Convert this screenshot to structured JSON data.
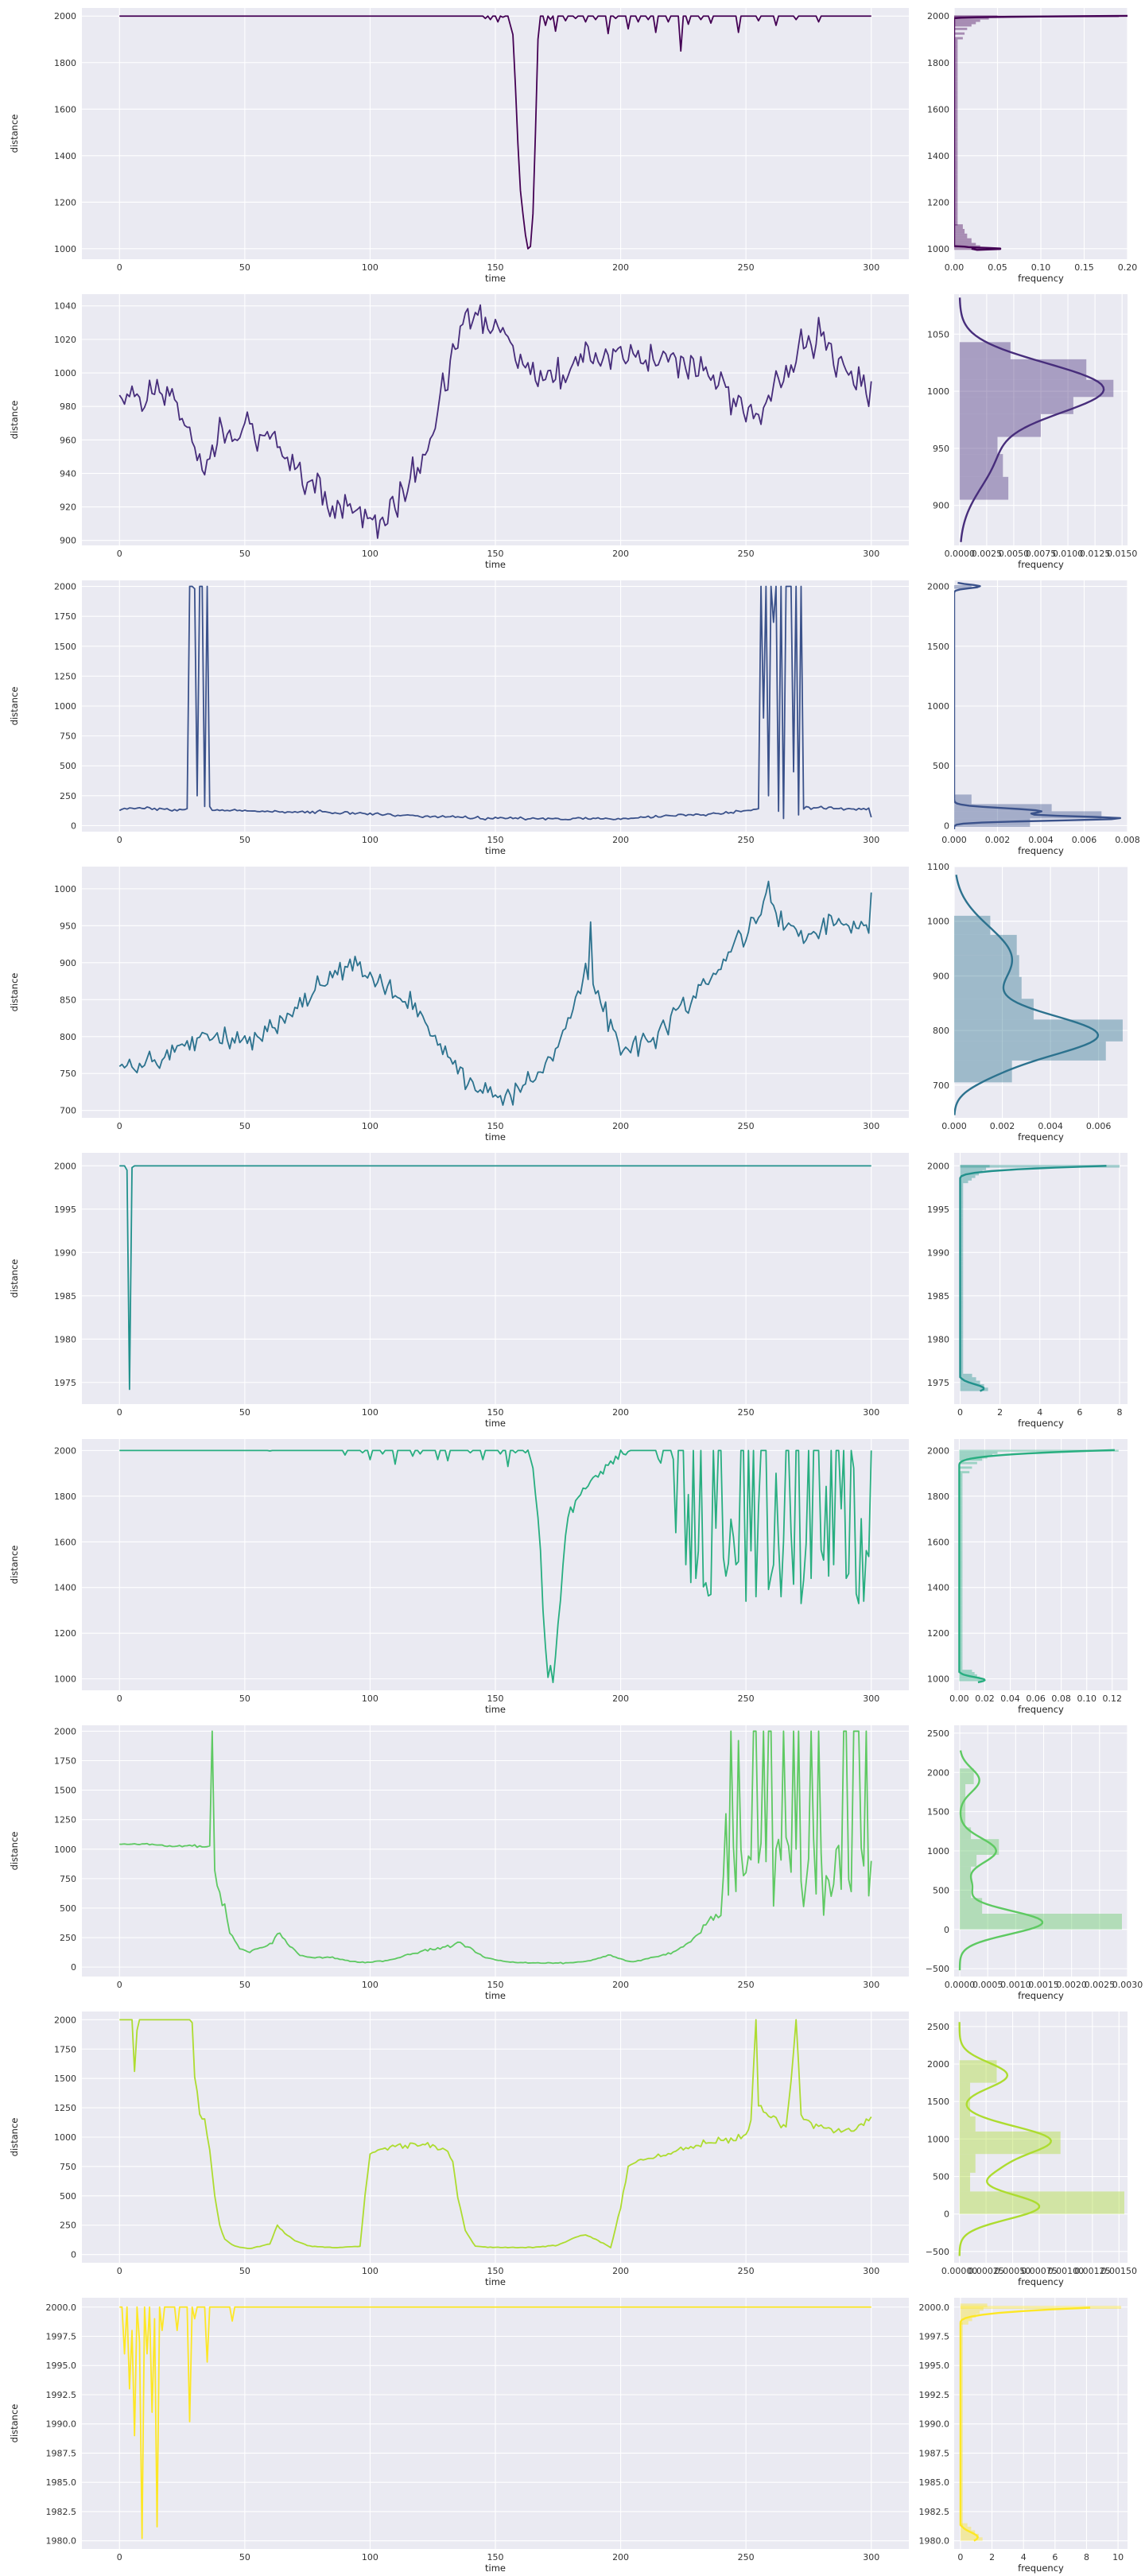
{
  "figure": {
    "rows": 9
  },
  "chart_data": [
    {
      "type": "line",
      "series": [
        {
          "color": "#440154"
        }
      ],
      "xlabel": "time",
      "ylabel": "distance",
      "xlim": [
        -15,
        315
      ],
      "ylim": [
        955,
        2035
      ],
      "xticks": [
        0,
        50,
        100,
        150,
        200,
        250,
        300
      ],
      "yticks": [
        1000,
        1200,
        1400,
        1600,
        1800,
        2000
      ],
      "ytick_labels": [
        "1000",
        "1200",
        "1400",
        "1600",
        "1800",
        "2000"
      ],
      "hist": {
        "xlabel": "frequency",
        "xlim": [
          0,
          0.2
        ],
        "xticks": [
          0,
          0.05,
          0.1,
          0.15,
          0.2
        ],
        "xtick_labels": [
          "0.00",
          "0.05",
          "0.10",
          "0.15",
          "0.20"
        ],
        "ylim": [
          955,
          2035
        ],
        "yticks": [
          1000,
          1200,
          1400,
          1600,
          1800,
          2000
        ],
        "ytick_labels": [
          "1000",
          "1200",
          "1400",
          "1600",
          "1800",
          "2000"
        ]
      }
    },
    {
      "type": "line",
      "series": [
        {
          "color": "#472d7b"
        }
      ],
      "xlabel": "time",
      "ylabel": "distance",
      "xlim": [
        -15,
        315
      ],
      "ylim": [
        897,
        1047
      ],
      "xticks": [
        0,
        50,
        100,
        150,
        200,
        250,
        300
      ],
      "yticks": [
        900,
        920,
        940,
        960,
        980,
        1000,
        1020,
        1040
      ],
      "ytick_labels": [
        "900",
        "920",
        "940",
        "960",
        "980",
        "1000",
        "1020",
        "1040"
      ],
      "hist": {
        "xlabel": "frequency",
        "xlim": [
          -0.0005,
          0.0155
        ],
        "xticks": [
          0,
          0.0025,
          0.005,
          0.0075,
          0.01,
          0.0125,
          0.015
        ],
        "xtick_labels": [
          "0.0000",
          "0.0025",
          "0.0050",
          "0.0075",
          "0.0100",
          "0.0125",
          "0.0150"
        ],
        "ylim": [
          865,
          1085
        ],
        "yticks": [
          900,
          950,
          1000,
          1050
        ],
        "ytick_labels": [
          "900",
          "950",
          "1000",
          "1050"
        ]
      }
    },
    {
      "type": "line",
      "series": [
        {
          "color": "#3b528b"
        }
      ],
      "xlabel": "time",
      "ylabel": "distance",
      "xlim": [
        -15,
        315
      ],
      "ylim": [
        -50,
        2050
      ],
      "xticks": [
        0,
        50,
        100,
        150,
        200,
        250,
        300
      ],
      "yticks": [
        0,
        250,
        500,
        750,
        1000,
        1250,
        1500,
        1750,
        2000
      ],
      "ytick_labels": [
        "0",
        "250",
        "500",
        "750",
        "1000",
        "1250",
        "1500",
        "1750",
        "2000"
      ],
      "hist": {
        "xlabel": "frequency",
        "xlim": [
          0,
          0.008
        ],
        "xticks": [
          0,
          0.002,
          0.004,
          0.006,
          0.008
        ],
        "xtick_labels": [
          "0.000",
          "0.002",
          "0.004",
          "0.006",
          "0.008"
        ],
        "ylim": [
          -50,
          2050
        ],
        "yticks": [
          0,
          500,
          1000,
          1500,
          2000
        ],
        "ytick_labels": [
          "0",
          "500",
          "1000",
          "1500",
          "2000"
        ]
      }
    },
    {
      "type": "line",
      "series": [
        {
          "color": "#2c728e"
        }
      ],
      "xlabel": "time",
      "ylabel": "distance",
      "xlim": [
        -15,
        315
      ],
      "ylim": [
        690,
        1030
      ],
      "xticks": [
        0,
        50,
        100,
        150,
        200,
        250,
        300
      ],
      "yticks": [
        700,
        750,
        800,
        850,
        900,
        950,
        1000
      ],
      "ytick_labels": [
        "700",
        "750",
        "800",
        "850",
        "900",
        "950",
        "1000"
      ],
      "hist": {
        "xlabel": "frequency",
        "xlim": [
          0,
          0.0072
        ],
        "xticks": [
          0,
          0.002,
          0.004,
          0.006
        ],
        "xtick_labels": [
          "0.000",
          "0.002",
          "0.004",
          "0.006"
        ],
        "ylim": [
          640,
          1100
        ],
        "yticks": [
          700,
          800,
          900,
          1000,
          1100
        ],
        "ytick_labels": [
          "700",
          "800",
          "900",
          "1000",
          "1100"
        ]
      }
    },
    {
      "type": "line",
      "series": [
        {
          "color": "#21918c"
        }
      ],
      "xlabel": "time",
      "ylabel": "distance",
      "xlim": [
        -15,
        315
      ],
      "ylim": [
        1972.5,
        2001.5
      ],
      "xticks": [
        0,
        50,
        100,
        150,
        200,
        250,
        300
      ],
      "yticks": [
        1975,
        1980,
        1985,
        1990,
        1995,
        2000
      ],
      "ytick_labels": [
        "1975",
        "1980",
        "1985",
        "1990",
        "1995",
        "2000"
      ],
      "hist": {
        "xlabel": "frequency",
        "xlim": [
          -0.3,
          8.4
        ],
        "xticks": [
          0,
          2,
          4,
          6,
          8
        ],
        "xtick_labels": [
          "0",
          "2",
          "4",
          "6",
          "8"
        ],
        "ylim": [
          1972.5,
          2001.5
        ],
        "yticks": [
          1975,
          1980,
          1985,
          1990,
          1995,
          2000
        ],
        "ytick_labels": [
          "1975",
          "1980",
          "1985",
          "1990",
          "1995",
          "2000"
        ]
      }
    },
    {
      "type": "line",
      "series": [
        {
          "color": "#28ae80"
        }
      ],
      "xlabel": "time",
      "ylabel": "distance",
      "xlim": [
        -15,
        315
      ],
      "ylim": [
        950,
        2050
      ],
      "xticks": [
        0,
        50,
        100,
        150,
        200,
        250,
        300
      ],
      "yticks": [
        1000,
        1200,
        1400,
        1600,
        1800,
        2000
      ],
      "ytick_labels": [
        "1000",
        "1200",
        "1400",
        "1600",
        "1800",
        "2000"
      ],
      "hist": {
        "xlabel": "frequency",
        "xlim": [
          -0.004,
          0.132
        ],
        "xticks": [
          0,
          0.02,
          0.04,
          0.06,
          0.08,
          0.1,
          0.12
        ],
        "xtick_labels": [
          "0.00",
          "0.02",
          "0.04",
          "0.06",
          "0.08",
          "0.10",
          "0.12"
        ],
        "ylim": [
          950,
          2050
        ],
        "yticks": [
          1000,
          1200,
          1400,
          1600,
          1800,
          2000
        ],
        "ytick_labels": [
          "1000",
          "1200",
          "1400",
          "1600",
          "1800",
          "2000"
        ]
      }
    },
    {
      "type": "line",
      "series": [
        {
          "color": "#5ec962"
        }
      ],
      "xlabel": "time",
      "ylabel": "distance",
      "xlim": [
        -15,
        315
      ],
      "ylim": [
        -80,
        2050
      ],
      "xticks": [
        0,
        50,
        100,
        150,
        200,
        250,
        300
      ],
      "yticks": [
        0,
        250,
        500,
        750,
        1000,
        1250,
        1500,
        1750,
        2000
      ],
      "ytick_labels": [
        "0",
        "250",
        "500",
        "750",
        "1000",
        "1250",
        "1500",
        "1750",
        "2000"
      ],
      "hist": {
        "xlabel": "frequency",
        "xlim": [
          -0.0001,
          0.003
        ],
        "xticks": [
          0,
          0.0005,
          0.001,
          0.0015,
          0.002,
          0.0025,
          0.003
        ],
        "xtick_labels": [
          "0.0000",
          "0.0005",
          "0.0010",
          "0.0015",
          "0.0020",
          "0.0025",
          "0.0030"
        ],
        "ylim": [
          -600,
          2600
        ],
        "yticks": [
          -500,
          0,
          500,
          1000,
          1500,
          2000,
          2500
        ],
        "ytick_labels": [
          "−500",
          "0",
          "500",
          "1000",
          "1500",
          "2000",
          "2500"
        ]
      }
    },
    {
      "type": "line",
      "series": [
        {
          "color": "#addc30"
        }
      ],
      "xlabel": "time",
      "ylabel": "distance",
      "xlim": [
        -15,
        315
      ],
      "ylim": [
        -70,
        2070
      ],
      "xticks": [
        0,
        50,
        100,
        150,
        200,
        250,
        300
      ],
      "yticks": [
        0,
        250,
        500,
        750,
        1000,
        1250,
        1500,
        1750,
        2000
      ],
      "ytick_labels": [
        "0",
        "250",
        "500",
        "750",
        "1000",
        "1250",
        "1500",
        "1750",
        "2000"
      ],
      "hist": {
        "xlabel": "frequency",
        "xlim": [
          -5e-05,
          0.00158
        ],
        "xticks": [
          0,
          0.00025,
          0.0005,
          0.00075,
          0.001,
          0.00125,
          0.0015
        ],
        "xtick_labels": [
          "0.00000",
          "0.00025",
          "0.00050",
          "0.00075",
          "0.00100",
          "0.00125",
          "0.00150"
        ],
        "ylim": [
          -650,
          2700
        ],
        "yticks": [
          -500,
          0,
          500,
          1000,
          1500,
          2000,
          2500
        ],
        "ytick_labels": [
          "−500",
          "0",
          "500",
          "1000",
          "1500",
          "2000",
          "2500"
        ]
      }
    },
    {
      "type": "line",
      "series": [
        {
          "color": "#fde725"
        }
      ],
      "xlabel": "time",
      "ylabel": "distance",
      "xlim": [
        -15,
        315
      ],
      "ylim": [
        1979.3,
        2000.8
      ],
      "xticks": [
        0,
        50,
        100,
        150,
        200,
        250,
        300
      ],
      "yticks": [
        1980,
        1982.5,
        1985,
        1987.5,
        1990,
        1992.5,
        1995,
        1997.5,
        2000
      ],
      "ytick_labels": [
        "1980.0",
        "1982.5",
        "1985.0",
        "1987.5",
        "1990.0",
        "1992.5",
        "1995.0",
        "1997.5",
        "2000.0"
      ],
      "hist": {
        "xlabel": "frequency",
        "xlim": [
          -0.4,
          10.6
        ],
        "xticks": [
          0,
          2,
          4,
          6,
          8,
          10
        ],
        "xtick_labels": [
          "0",
          "2",
          "4",
          "6",
          "8",
          "10"
        ],
        "ylim": [
          1979.3,
          2000.8
        ],
        "yticks": [
          1980,
          1982.5,
          1985,
          1987.5,
          1990,
          1992.5,
          1995,
          1997.5,
          2000
        ],
        "ytick_labels": [
          "1980.0",
          "1982.5",
          "1985.0",
          "1987.5",
          "1990.0",
          "1992.5",
          "1995.0",
          "1997.5",
          "2000.0"
        ]
      }
    }
  ]
}
